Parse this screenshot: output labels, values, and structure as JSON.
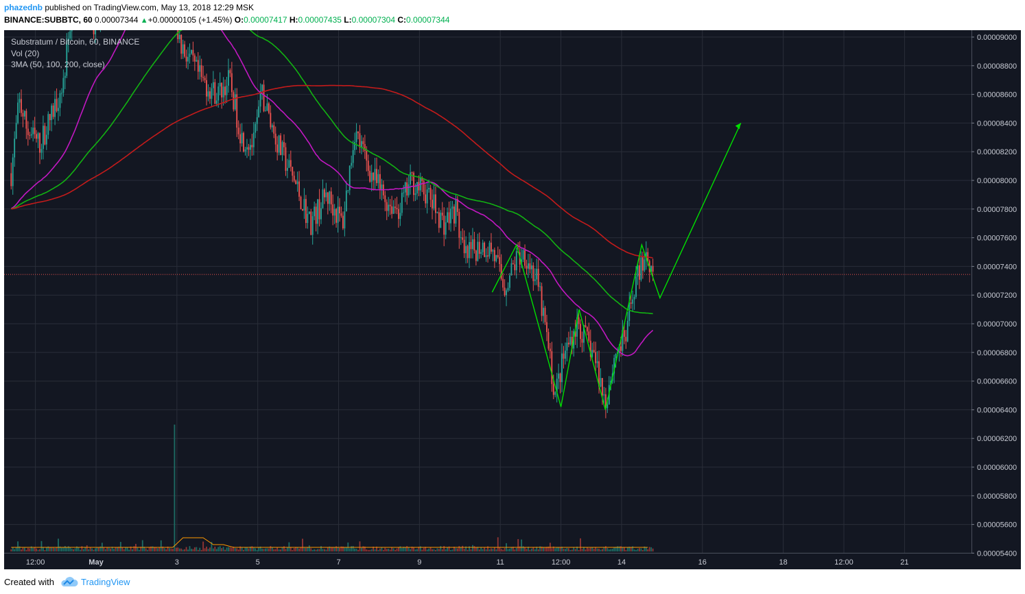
{
  "header": {
    "author": "phazednb",
    "published": "published on TradingView.com, May 13, 2018 12:29 MSK",
    "symbol": "BINANCE:SUBBTC, 60",
    "last": "0.00007344",
    "change": "+0.00000105 (+1.45%)",
    "o_label": "O:",
    "o": "0.00007417",
    "h_label": "H:",
    "h": "0.00007435",
    "l_label": "L:",
    "l": "0.00007304",
    "c_label": "C:",
    "c": "0.00007344"
  },
  "legend": {
    "title": "Substratum / Bitcoin, 60, BINANCE",
    "vol": "Vol (20)",
    "ma": "3MA (50, 100, 200, close)"
  },
  "footer": {
    "created": "Created with",
    "brand": "TradingView"
  },
  "colors": {
    "background": "#131722",
    "grid": "#2a2e39",
    "up": "#26a69a",
    "down": "#ef5350",
    "ma50": "#c218c2",
    "ma100": "#12b312",
    "ma200": "#c41b1b",
    "pattern": "#00e000",
    "last_price_line": "#ef5350",
    "volume_ma": "#ff9800"
  },
  "chart_data": {
    "type": "candlestick",
    "y_axis_ticks": [
      "0.00009000",
      "0.00008800",
      "0.00008600",
      "0.00008400",
      "0.00008200",
      "0.00008000",
      "0.00007800",
      "0.00007600",
      "0.00007400",
      "0.00007200",
      "0.00007000",
      "0.00006800",
      "0.00006600",
      "0.00006400",
      "0.00006200",
      "0.00006000",
      "0.00005800",
      "0.00005600",
      "0.00005400"
    ],
    "ylim": [
      5.39e-05,
      9.08e-05
    ],
    "x_axis_ticks": [
      "12:00",
      "May",
      "3",
      "5",
      "7",
      "9",
      "11",
      "12:00",
      "14",
      "16",
      "18",
      "12:00",
      "21"
    ],
    "last_price": 7.344e-05,
    "ma_series": [
      {
        "name": "MA50",
        "values_approx": [
          8.2e-05,
          9e-05,
          9.15e-05,
          9.05e-05,
          8.68e-05,
          8.3e-05,
          8e-05,
          7.95e-05,
          7.8e-05,
          7.45e-05,
          7e-05,
          6.9e-05,
          6.93e-05
        ]
      },
      {
        "name": "MA100",
        "values_approx": [
          8.02e-05,
          8.35e-05,
          8.8e-05,
          9.12e-05,
          9e-05,
          8.6e-05,
          8.3e-05,
          8.03e-05,
          7.85e-05,
          7.6e-05,
          7.3e-05,
          7.2e-05,
          7.17e-05
        ]
      },
      {
        "name": "MA200",
        "values_approx": [
          8.07e-05,
          8.2e-05,
          8.45e-05,
          8.62e-05,
          8.68e-05,
          8.65e-05,
          8.55e-05,
          8.3e-05,
          7.9e-05,
          7.65e-05,
          7.54e-05
        ]
      }
    ],
    "pattern_drawing": {
      "points": [
        [
          7.22e-05,
          "May 10"
        ],
        [
          7.55e-05,
          "May 10 12:00"
        ],
        [
          6.42e-05,
          "May 11 12:00"
        ],
        [
          7.1e-05,
          "May 11"
        ],
        [
          6.4e-05,
          "May 12"
        ],
        [
          7.55e-05,
          "May 13"
        ],
        [
          7.18e-05,
          "May 13 12:00"
        ],
        [
          8.4e-05,
          "May 16"
        ]
      ],
      "arrow": true
    }
  }
}
